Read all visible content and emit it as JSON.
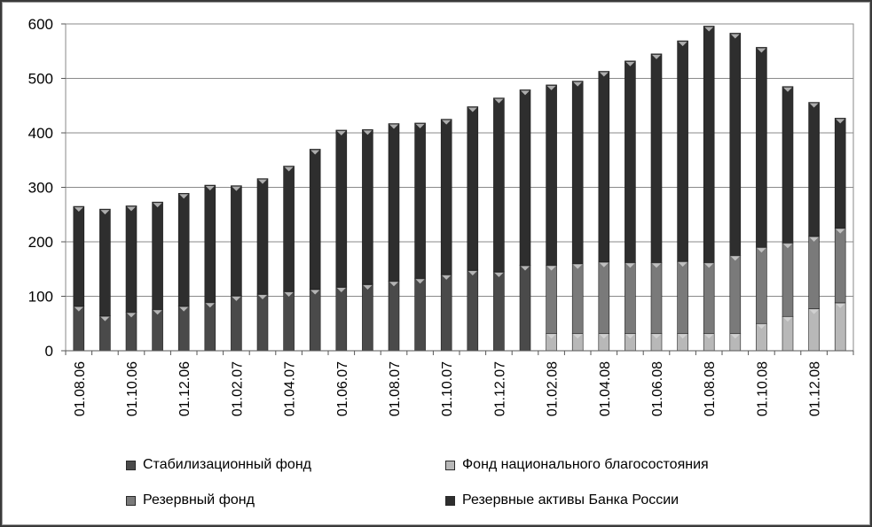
{
  "chart_data": {
    "type": "bar",
    "stacked": true,
    "ylim": [
      0,
      600
    ],
    "yticks": [
      0,
      100,
      200,
      300,
      400,
      500,
      600
    ],
    "grid": true,
    "legend_position": "bottom",
    "categories": [
      "01.08.06",
      "01.09.06",
      "01.10.06",
      "01.11.06",
      "01.12.06",
      "01.01.07",
      "01.02.07",
      "01.03.07",
      "01.04.07",
      "01.05.07",
      "01.06.07",
      "01.07.07",
      "01.08.07",
      "01.09.07",
      "01.10.07",
      "01.11.07",
      "01.12.07",
      "01.01.08",
      "01.02.08",
      "01.03.08",
      "01.04.08",
      "01.05.08",
      "01.06.08",
      "01.07.08",
      "01.08.08",
      "01.09.08",
      "01.10.08",
      "01.11.08",
      "01.12.08",
      "01.01.09"
    ],
    "xtick_labels": [
      "01.08.06",
      "",
      "01.10.06",
      "",
      "01.12.06",
      "",
      "01.02.07",
      "",
      "01.04.07",
      "",
      "01.06.07",
      "",
      "01.08.07",
      "",
      "01.10.07",
      "",
      "01.12.07",
      "",
      "01.02.08",
      "",
      "01.04.08",
      "",
      "01.06.08",
      "",
      "01.08.08",
      "",
      "01.10.08",
      "",
      "01.12.08",
      ""
    ],
    "series": [
      {
        "name": "Стабилизационный фонд",
        "color": "#4a4a4a",
        "values": [
          82,
          64,
          71,
          76,
          82,
          89,
          101,
          104,
          109,
          113,
          117,
          122,
          128,
          133,
          140,
          148,
          145,
          157,
          0,
          0,
          0,
          0,
          0,
          0,
          0,
          0,
          0,
          0,
          0,
          0
        ]
      },
      {
        "name": "Фонд национального благосостояния",
        "color": "#b8b8b8",
        "values": [
          0,
          0,
          0,
          0,
          0,
          0,
          0,
          0,
          0,
          0,
          0,
          0,
          0,
          0,
          0,
          0,
          0,
          0,
          32,
          32,
          32,
          32,
          32,
          32,
          32,
          32,
          50,
          63,
          77,
          88
        ]
      },
      {
        "name": "Резервный фонд",
        "color": "#7a7a7a",
        "values": [
          0,
          0,
          0,
          0,
          0,
          0,
          0,
          0,
          0,
          0,
          0,
          0,
          0,
          0,
          0,
          0,
          0,
          0,
          125,
          128,
          131,
          130,
          130,
          132,
          130,
          143,
          140,
          135,
          133,
          137
        ]
      },
      {
        "name": "Резервные активы Банка России",
        "color": "#2e2e2e",
        "values": [
          183,
          196,
          195,
          197,
          207,
          215,
          202,
          212,
          230,
          257,
          288,
          284,
          289,
          285,
          285,
          300,
          319,
          322,
          331,
          335,
          350,
          370,
          383,
          405,
          434,
          408,
          367,
          287,
          246,
          202
        ]
      }
    ]
  },
  "legend": {
    "items": [
      {
        "label": "Стабилизационный фонд",
        "color": "#4a4a4a"
      },
      {
        "label": "Фонд национального благосостояния",
        "color": "#b8b8b8"
      },
      {
        "label": "Резервный фонд",
        "color": "#7a7a7a"
      },
      {
        "label": "Резервные активы Банка России",
        "color": "#2e2e2e"
      }
    ]
  }
}
